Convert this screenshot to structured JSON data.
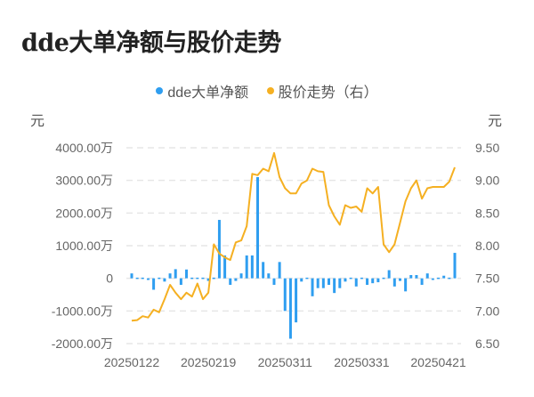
{
  "title": "dde大单净额与股价走势",
  "legend": [
    {
      "label": "dde大单净额",
      "color": "#2f9ef0"
    },
    {
      "label": "股价走势（右）",
      "color": "#f5b022"
    }
  ],
  "axes": {
    "left_unit": "元",
    "right_unit": "元",
    "left_ticks": [
      "4000.00万",
      "3000.00万",
      "2000.00万",
      "1000.00万",
      "0",
      "-1000.00万",
      "-2000.00万"
    ],
    "right_ticks": [
      "9.50",
      "9.00",
      "8.50",
      "8.00",
      "7.50",
      "7.00",
      "6.50"
    ],
    "x_ticks": [
      "20250122",
      "20250219",
      "20250311",
      "20250331",
      "20250421"
    ]
  },
  "chart_data": {
    "type": "bar+line",
    "title": "dde大单净额与股价走势",
    "xlabel": "",
    "ylabel_left": "元",
    "ylabel_right": "元",
    "ylim_left": [
      -2000,
      4000
    ],
    "ylim_right": [
      6.5,
      9.5
    ],
    "left_unit_note": "万元",
    "grid": true,
    "legend_position": "top",
    "x_tick_labels": [
      "20250122",
      "20250219",
      "20250311",
      "20250331",
      "20250421"
    ],
    "x_tick_indices": [
      0,
      14,
      28,
      42,
      56
    ],
    "series": [
      {
        "name": "dde大单净额",
        "type": "bar",
        "axis": "left",
        "color": "#2f9ef0",
        "values": [
          150,
          20,
          0,
          -50,
          -350,
          -30,
          -100,
          150,
          280,
          -200,
          270,
          0,
          0,
          0,
          -80,
          0,
          1790,
          700,
          -200,
          -80,
          150,
          700,
          700,
          3100,
          500,
          150,
          -200,
          500,
          -1000,
          -1850,
          -1350,
          -100,
          0,
          -550,
          -300,
          -300,
          -200,
          -450,
          -300,
          -100,
          0,
          -250,
          0,
          -200,
          -150,
          -120,
          0,
          250,
          -250,
          -80,
          -400,
          100,
          100,
          -200,
          150,
          -50,
          0,
          80,
          0,
          780
        ]
      },
      {
        "name": "股价走势（右）",
        "type": "line",
        "axis": "right",
        "color": "#f5b022",
        "values": [
          6.85,
          6.86,
          6.92,
          6.9,
          7.02,
          6.98,
          7.18,
          7.4,
          7.28,
          7.18,
          7.28,
          7.22,
          7.42,
          7.18,
          7.28,
          8.02,
          7.88,
          7.82,
          7.78,
          8.05,
          8.08,
          8.3,
          9.1,
          9.08,
          9.18,
          9.14,
          9.42,
          9.05,
          8.88,
          8.8,
          8.8,
          8.95,
          9.0,
          9.18,
          9.14,
          9.13,
          8.62,
          8.45,
          8.32,
          8.62,
          8.58,
          8.6,
          8.52,
          8.88,
          8.8,
          8.9,
          8.02,
          7.9,
          8.02,
          8.35,
          8.68,
          8.88,
          9.0,
          8.72,
          8.88,
          8.9,
          8.9,
          8.9,
          8.98,
          9.2
        ]
      }
    ]
  }
}
